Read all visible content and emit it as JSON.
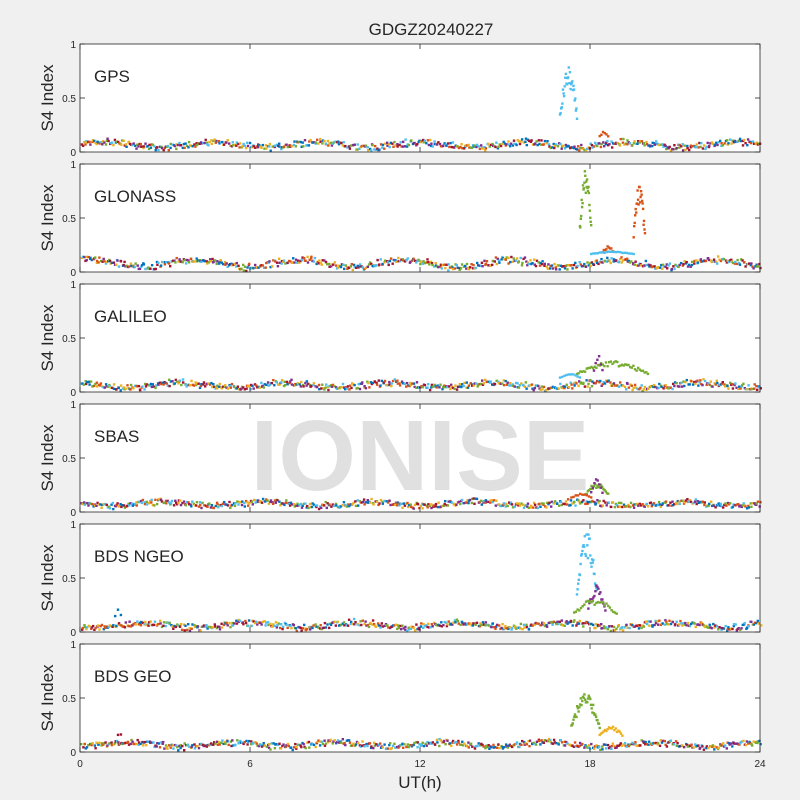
{
  "title": "GDGZ20240227",
  "watermark": "IONISE",
  "colors": {
    "background": "#f0f0f0",
    "axes_bg": "#ffffff",
    "axis_line": "#262626",
    "watermark": "#d9d9d9",
    "series": [
      "#0072BD",
      "#D95319",
      "#EDB120",
      "#7E2F8E",
      "#77AC30",
      "#4DBEEE",
      "#A2142F"
    ]
  },
  "chart_data": {
    "type": "scatter",
    "title": "GDGZ20240227",
    "xlabel": "UT(h)",
    "ylabel": "S4 Index",
    "xlim": [
      0,
      24
    ],
    "ylim": [
      0,
      1
    ],
    "xticks": [
      "0",
      "6",
      "12",
      "18",
      "24"
    ],
    "yticks": [
      "0",
      "0.5",
      "1"
    ],
    "panels": [
      {
        "label": "GPS",
        "baseline": [
          0.04,
          0.14
        ],
        "events": [
          {
            "color": "#4DBEEE",
            "t_start": 16.9,
            "t_end": 17.5,
            "peak": 0.8,
            "n": 30
          },
          {
            "color": "#D95319",
            "t_start": 18.3,
            "t_end": 18.6,
            "peak": 0.2,
            "n": 6
          }
        ]
      },
      {
        "label": "GLONASS",
        "baseline": [
          0.04,
          0.17
        ],
        "events": [
          {
            "color": "#77AC30",
            "t_start": 17.6,
            "t_end": 18.0,
            "peak": 0.97,
            "n": 26
          },
          {
            "color": "#D95319",
            "t_start": 19.5,
            "t_end": 19.9,
            "peak": 0.82,
            "n": 24
          },
          {
            "color": "#D95319",
            "t_start": 18.4,
            "t_end": 18.8,
            "peak": 0.25,
            "n": 10
          },
          {
            "color": "#4DBEEE",
            "t_start": 18.0,
            "t_end": 19.5,
            "peak": 0.2,
            "n": 20
          }
        ]
      },
      {
        "label": "GALILEO",
        "baseline": [
          0.04,
          0.13
        ],
        "events": [
          {
            "color": "#77AC30",
            "t_start": 17.5,
            "t_end": 20.0,
            "peak": 0.3,
            "n": 45
          },
          {
            "color": "#7E2F8E",
            "t_start": 18.1,
            "t_end": 18.4,
            "peak": 0.38,
            "n": 6
          },
          {
            "color": "#4DBEEE",
            "t_start": 16.9,
            "t_end": 17.6,
            "peak": 0.18,
            "n": 10
          }
        ]
      },
      {
        "label": "SBAS",
        "baseline": [
          0.06,
          0.13
        ],
        "events": [
          {
            "color": "#77AC30",
            "t_start": 17.8,
            "t_end": 18.6,
            "peak": 0.28,
            "n": 20
          },
          {
            "color": "#7E2F8E",
            "t_start": 18.0,
            "t_end": 18.4,
            "peak": 0.33,
            "n": 8
          },
          {
            "color": "#D95319",
            "t_start": 17.3,
            "t_end": 18.0,
            "peak": 0.18,
            "n": 10
          }
        ]
      },
      {
        "label": "BDS NGEO",
        "baseline": [
          0.04,
          0.13
        ],
        "events": [
          {
            "color": "#4DBEEE",
            "t_start": 17.5,
            "t_end": 18.2,
            "peak": 0.93,
            "n": 34
          },
          {
            "color": "#7E2F8E",
            "t_start": 17.9,
            "t_end": 18.5,
            "peak": 0.45,
            "n": 18
          },
          {
            "color": "#77AC30",
            "t_start": 17.4,
            "t_end": 18.9,
            "peak": 0.32,
            "n": 26
          },
          {
            "color": "#0072BD",
            "t_start": 1.2,
            "t_end": 1.4,
            "peak": 0.24,
            "n": 3
          }
        ]
      },
      {
        "label": "BDS GEO",
        "baseline": [
          0.05,
          0.13
        ],
        "events": [
          {
            "color": "#77AC30",
            "t_start": 17.3,
            "t_end": 18.3,
            "peak": 0.55,
            "n": 40
          },
          {
            "color": "#EDB120",
            "t_start": 18.3,
            "t_end": 19.1,
            "peak": 0.25,
            "n": 18
          },
          {
            "color": "#A2142F",
            "t_start": 1.3,
            "t_end": 1.4,
            "peak": 0.26,
            "n": 2
          }
        ]
      }
    ]
  }
}
